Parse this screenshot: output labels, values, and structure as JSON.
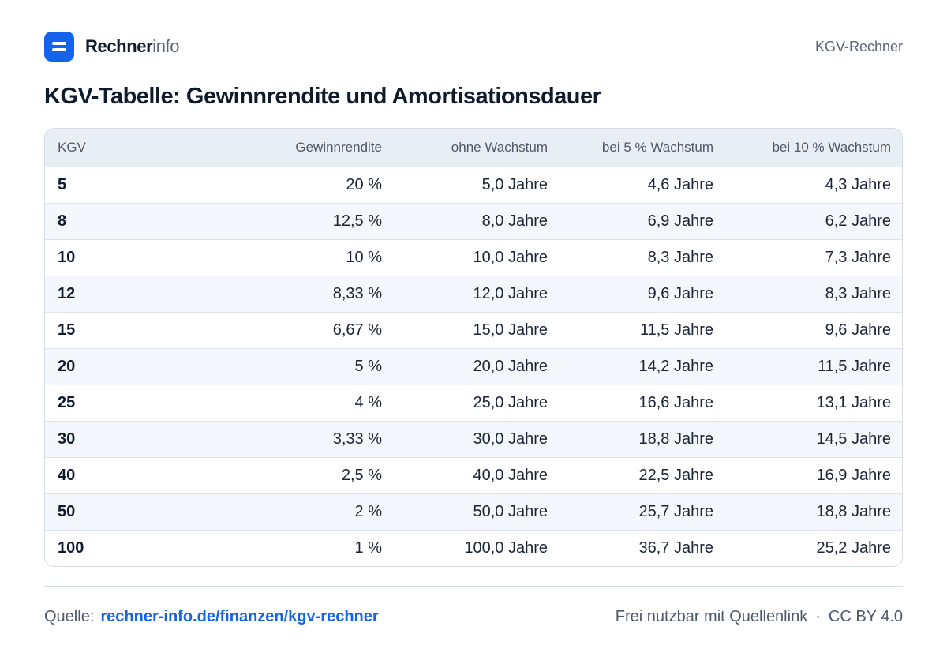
{
  "header": {
    "brand_strong": "Rechner",
    "brand_light": "info",
    "right_label": "KGV-Rechner",
    "logo_icon": "equals-icon",
    "accent_color": "#1463ea"
  },
  "title": "KGV-Tabelle: Gewinnrendite und Amortisationsdauer",
  "table": {
    "columns": [
      "KGV",
      "Gewinnrendite",
      "ohne Wachstum",
      "bei 5 % Wachstum",
      "bei 10 % Wachstum"
    ],
    "rows": [
      [
        "5",
        "20 %",
        "5,0 Jahre",
        "4,6 Jahre",
        "4,3 Jahre"
      ],
      [
        "8",
        "12,5 %",
        "8,0 Jahre",
        "6,9 Jahre",
        "6,2 Jahre"
      ],
      [
        "10",
        "10 %",
        "10,0 Jahre",
        "8,3 Jahre",
        "7,3 Jahre"
      ],
      [
        "12",
        "8,33 %",
        "12,0 Jahre",
        "9,6 Jahre",
        "8,3 Jahre"
      ],
      [
        "15",
        "6,67 %",
        "15,0 Jahre",
        "11,5 Jahre",
        "9,6 Jahre"
      ],
      [
        "20",
        "5 %",
        "20,0 Jahre",
        "14,2 Jahre",
        "11,5 Jahre"
      ],
      [
        "25",
        "4 %",
        "25,0 Jahre",
        "16,6 Jahre",
        "13,1 Jahre"
      ],
      [
        "30",
        "3,33 %",
        "30,0 Jahre",
        "18,8 Jahre",
        "14,5 Jahre"
      ],
      [
        "40",
        "2,5 %",
        "40,0 Jahre",
        "22,5 Jahre",
        "16,9 Jahre"
      ],
      [
        "50",
        "2 %",
        "50,0 Jahre",
        "25,7 Jahre",
        "18,8 Jahre"
      ],
      [
        "100",
        "1 %",
        "100,0 Jahre",
        "36,7 Jahre",
        "25,2 Jahre"
      ]
    ]
  },
  "footer": {
    "source_label": "Quelle:",
    "source_link": "rechner-info.de/finanzen/kgv-rechner",
    "license_note": "Frei nutzbar mit Quellenlink",
    "separator": "·",
    "license": "CC BY 4.0"
  }
}
